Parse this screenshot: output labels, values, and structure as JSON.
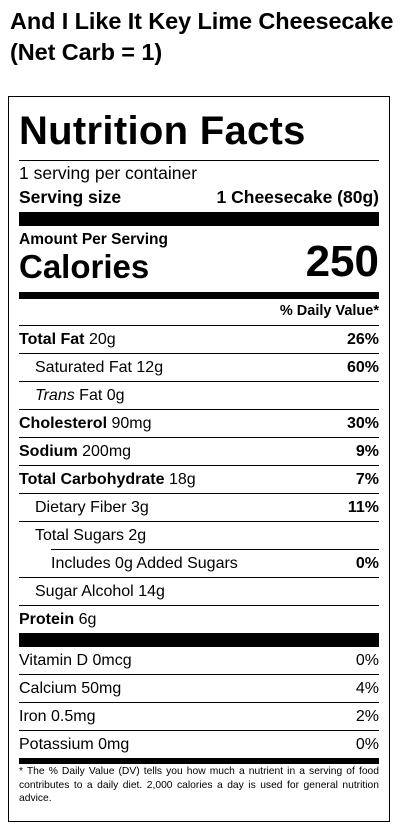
{
  "product_title": "And I Like It Key Lime Cheesecake (Net Carb = 1)",
  "label": {
    "heading": "Nutrition Facts",
    "servings_per_container": "1 serving per container",
    "serving_size_label": "Serving size",
    "serving_size_value": "1 Cheesecake (80g)",
    "amount_per_serving": "Amount Per Serving",
    "calories_label": "Calories",
    "calories_value": "250",
    "daily_value_header": "% Daily Value*",
    "nutrients": [
      {
        "name": "Total Fat",
        "amount": "20g",
        "dv": "26%"
      },
      {
        "name": "Saturated Fat",
        "amount": "12g",
        "dv": "60%"
      },
      {
        "name": "Trans",
        "name_suffix": "Fat",
        "amount": "0g",
        "dv": ""
      },
      {
        "name": "Cholesterol",
        "amount": "90mg",
        "dv": "30%"
      },
      {
        "name": "Sodium",
        "amount": "200mg",
        "dv": "9%"
      },
      {
        "name": "Total Carbohydrate",
        "amount": "18g",
        "dv": "7%"
      },
      {
        "name": "Dietary Fiber",
        "amount": "3g",
        "dv": "11%"
      },
      {
        "name": "Total Sugars",
        "amount": "2g",
        "dv": ""
      },
      {
        "name": "Includes 0g Added Sugars",
        "amount": "",
        "dv": "0%"
      },
      {
        "name": "Sugar Alcohol",
        "amount": "14g",
        "dv": ""
      },
      {
        "name": "Protein",
        "amount": "6g",
        "dv": ""
      }
    ],
    "vitamins": [
      {
        "name": "Vitamin D 0mcg",
        "dv": "0%"
      },
      {
        "name": "Calcium 50mg",
        "dv": "4%"
      },
      {
        "name": "Iron 0.5mg",
        "dv": "2%"
      },
      {
        "name": "Potassium 0mg",
        "dv": "0%"
      }
    ],
    "footnote": "* The % Daily Value (DV) tells you how much a nutrient in a serving of food contributes to a daily diet. 2,000 calories a day is used for general nutrition advice."
  }
}
